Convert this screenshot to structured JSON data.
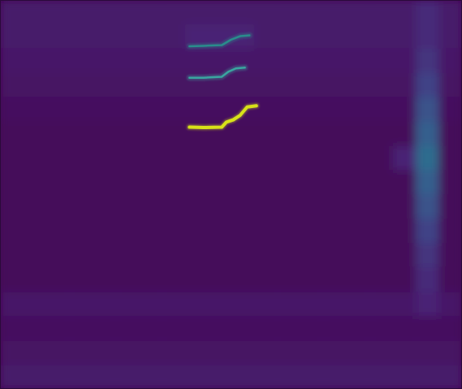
{
  "chart_data": {
    "type": "heatmap",
    "xlim": [
      0,
      100
    ],
    "ylim": [
      0,
      100
    ],
    "tick_labels": false,
    "grid": false,
    "clim": [
      0,
      1
    ],
    "cells": [
      [
        0.07,
        0.07,
        0.07,
        0.07,
        0.07,
        0.07,
        0.07,
        0.07,
        0.07,
        0.07,
        0.07,
        0.07,
        0.07,
        0.07,
        0.07,
        0.07,
        0.07,
        0.07,
        0.12,
        0.07
      ],
      [
        0.07,
        0.07,
        0.07,
        0.07,
        0.07,
        0.07,
        0.07,
        0.07,
        0.1,
        0.1,
        0.1,
        0.07,
        0.07,
        0.07,
        0.07,
        0.07,
        0.07,
        0.07,
        0.12,
        0.07
      ],
      [
        0.06,
        0.06,
        0.06,
        0.06,
        0.06,
        0.06,
        0.06,
        0.06,
        0.06,
        0.06,
        0.06,
        0.06,
        0.06,
        0.06,
        0.06,
        0.06,
        0.06,
        0.06,
        0.15,
        0.06
      ],
      [
        0.05,
        0.05,
        0.05,
        0.05,
        0.05,
        0.05,
        0.05,
        0.05,
        0.05,
        0.05,
        0.05,
        0.05,
        0.05,
        0.05,
        0.05,
        0.05,
        0.05,
        0.05,
        0.2,
        0.05
      ],
      [
        0.03,
        0.03,
        0.03,
        0.03,
        0.03,
        0.03,
        0.03,
        0.03,
        0.03,
        0.03,
        0.03,
        0.03,
        0.03,
        0.03,
        0.03,
        0.03,
        0.03,
        0.03,
        0.25,
        0.03
      ],
      [
        0.02,
        0.02,
        0.02,
        0.02,
        0.02,
        0.02,
        0.02,
        0.02,
        0.02,
        0.02,
        0.02,
        0.02,
        0.02,
        0.02,
        0.02,
        0.02,
        0.02,
        0.02,
        0.3,
        0.02
      ],
      [
        0.02,
        0.02,
        0.02,
        0.02,
        0.02,
        0.02,
        0.02,
        0.02,
        0.02,
        0.02,
        0.02,
        0.02,
        0.02,
        0.02,
        0.02,
        0.02,
        0.02,
        0.1,
        0.35,
        0.02
      ],
      [
        0.02,
        0.02,
        0.02,
        0.02,
        0.02,
        0.02,
        0.02,
        0.02,
        0.02,
        0.02,
        0.02,
        0.02,
        0.02,
        0.02,
        0.02,
        0.02,
        0.02,
        0.02,
        0.3,
        0.02
      ],
      [
        0.02,
        0.02,
        0.02,
        0.02,
        0.02,
        0.02,
        0.02,
        0.02,
        0.02,
        0.02,
        0.02,
        0.02,
        0.02,
        0.02,
        0.02,
        0.02,
        0.02,
        0.02,
        0.25,
        0.02
      ],
      [
        0.02,
        0.02,
        0.02,
        0.02,
        0.02,
        0.02,
        0.02,
        0.02,
        0.02,
        0.02,
        0.02,
        0.02,
        0.02,
        0.02,
        0.02,
        0.02,
        0.02,
        0.02,
        0.2,
        0.02
      ],
      [
        0.02,
        0.02,
        0.02,
        0.02,
        0.02,
        0.02,
        0.02,
        0.02,
        0.02,
        0.02,
        0.02,
        0.02,
        0.02,
        0.02,
        0.02,
        0.02,
        0.02,
        0.02,
        0.15,
        0.02
      ],
      [
        0.02,
        0.02,
        0.02,
        0.02,
        0.02,
        0.02,
        0.02,
        0.02,
        0.02,
        0.02,
        0.02,
        0.02,
        0.02,
        0.02,
        0.02,
        0.02,
        0.02,
        0.02,
        0.12,
        0.02
      ],
      [
        0.06,
        0.06,
        0.06,
        0.06,
        0.06,
        0.06,
        0.06,
        0.06,
        0.06,
        0.06,
        0.06,
        0.06,
        0.06,
        0.06,
        0.06,
        0.06,
        0.06,
        0.06,
        0.1,
        0.06
      ],
      [
        0.03,
        0.03,
        0.03,
        0.03,
        0.03,
        0.03,
        0.03,
        0.03,
        0.03,
        0.03,
        0.03,
        0.03,
        0.03,
        0.03,
        0.03,
        0.03,
        0.03,
        0.03,
        0.03,
        0.03
      ],
      [
        0.05,
        0.05,
        0.05,
        0.05,
        0.05,
        0.05,
        0.05,
        0.05,
        0.05,
        0.05,
        0.05,
        0.05,
        0.05,
        0.05,
        0.05,
        0.05,
        0.05,
        0.05,
        0.05,
        0.05
      ],
      [
        0.07,
        0.07,
        0.07,
        0.07,
        0.07,
        0.07,
        0.07,
        0.07,
        0.07,
        0.07,
        0.07,
        0.07,
        0.07,
        0.07,
        0.07,
        0.07,
        0.07,
        0.07,
        0.07,
        0.07
      ]
    ],
    "series": [
      {
        "type": "line",
        "color": "#d8e219",
        "x": [
          41,
          44,
          48,
          49,
          50.5,
          52,
          53.5,
          55.5
        ],
        "values": [
          67.3,
          67.2,
          67.3,
          68.6,
          69.2,
          70.4,
          72.5,
          72.8
        ]
      },
      {
        "type": "line",
        "color": "#3aa5a0",
        "x": [
          41,
          44,
          48,
          49.5,
          51,
          53
        ],
        "values": [
          80.0,
          80.0,
          80.3,
          81.6,
          82.4,
          82.6
        ]
      },
      {
        "type": "line",
        "color": "#2a8c8c",
        "x": [
          41,
          44,
          48,
          50,
          52,
          54
        ],
        "values": [
          88.1,
          88.2,
          88.4,
          89.8,
          90.7,
          90.9
        ]
      }
    ]
  }
}
